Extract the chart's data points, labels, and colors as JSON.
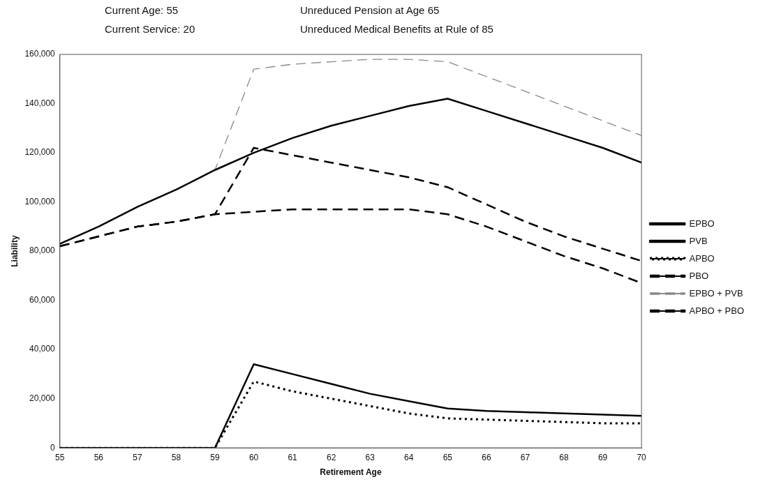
{
  "chart_data": {
    "type": "line",
    "annotations": [
      "Current Age: 55",
      "Unreduced Pension at Age 65",
      "Current Service: 20",
      "Unreduced Medical Benefits at Rule of 85"
    ],
    "xlabel": "Retirement Age",
    "ylabel": "Liability",
    "x": [
      55,
      56,
      57,
      58,
      59,
      60,
      61,
      62,
      63,
      64,
      65,
      66,
      67,
      68,
      69,
      70
    ],
    "series": [
      {
        "name": "EPBO",
        "color": "#000000",
        "line_style": "solid",
        "values": [
          0,
          0,
          0,
          0,
          0,
          34000,
          30000,
          26000,
          22000,
          19000,
          16000,
          15000,
          14500,
          14000,
          13500,
          13000
        ]
      },
      {
        "name": "PVB",
        "color": "#000000",
        "line_style": "solid",
        "values": [
          83000,
          90000,
          98000,
          105000,
          113000,
          120000,
          126000,
          131000,
          135000,
          139000,
          142000,
          137000,
          132000,
          127000,
          122000,
          116000
        ]
      },
      {
        "name": "APBO",
        "color": "#000000",
        "line_style": "dotted",
        "values": [
          0,
          0,
          0,
          0,
          0,
          27000,
          23000,
          20000,
          17000,
          14000,
          12000,
          11500,
          11000,
          10500,
          10000,
          10000
        ]
      },
      {
        "name": "PBO",
        "color": "#000000",
        "line_style": "dashed",
        "values": [
          82000,
          86000,
          90000,
          92000,
          95000,
          96000,
          97000,
          97000,
          97000,
          97000,
          95000,
          90000,
          84000,
          78000,
          73000,
          67000
        ]
      },
      {
        "name": "EPBO + PVB",
        "color": "#888888",
        "line_style": "dashed",
        "values": [
          83000,
          90000,
          98000,
          105000,
          113000,
          154000,
          156000,
          157000,
          158000,
          158000,
          157000,
          151000,
          145000,
          139000,
          133000,
          127000
        ]
      },
      {
        "name": "APBO + PBO",
        "color": "#000000",
        "line_style": "dashed",
        "values": [
          82000,
          86000,
          90000,
          92000,
          95000,
          122000,
          119000,
          116000,
          113000,
          110000,
          106000,
          99000,
          92000,
          86000,
          81000,
          76000
        ]
      }
    ],
    "xlim": [
      55,
      70
    ],
    "xticks": [
      55,
      56,
      57,
      58,
      59,
      60,
      61,
      62,
      63,
      64,
      65,
      66,
      67,
      68,
      69,
      70
    ],
    "ylim": [
      0,
      160000
    ],
    "yticks": [
      0,
      {
        "value": 20000,
        "label": "20,000"
      },
      {
        "value": 40000,
        "label": "40,000"
      },
      {
        "value": 60000,
        "label": "60,000"
      },
      {
        "value": 80000,
        "label": "80,000"
      },
      {
        "value": 100000,
        "label": "100,000"
      },
      {
        "value": 120000,
        "label": "120,000"
      },
      {
        "value": 140000,
        "label": "140,000"
      },
      {
        "value": 160000,
        "label": "160,000"
      }
    ],
    "grid": false,
    "legend": "right",
    "marker": "none"
  }
}
